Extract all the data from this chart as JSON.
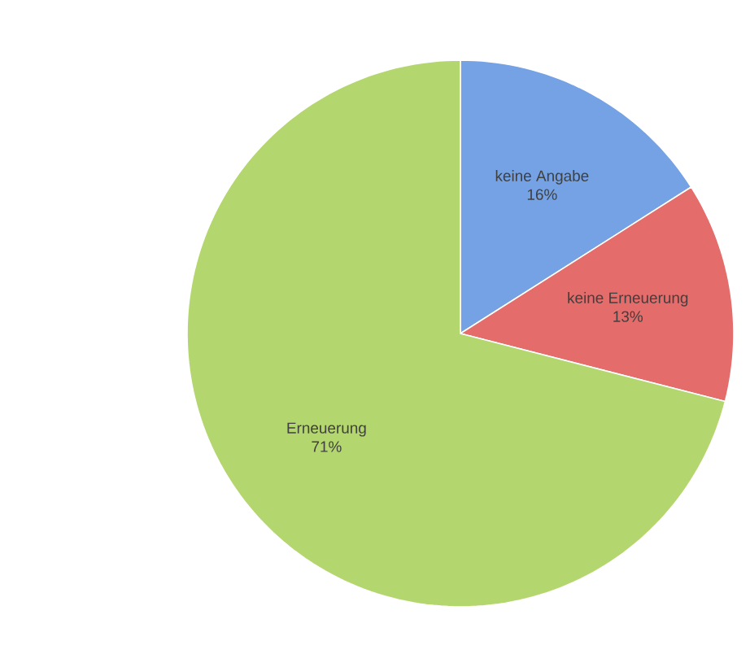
{
  "chart_data": {
    "type": "pie",
    "categories": [
      "keine Angabe",
      "keine Erneuerung",
      "Erneuerung"
    ],
    "values": [
      16,
      13,
      71
    ],
    "colors": [
      "#74a2e4",
      "#e46c6b",
      "#b4d66e"
    ],
    "value_labels": [
      "16%",
      "13%",
      "71%"
    ]
  }
}
